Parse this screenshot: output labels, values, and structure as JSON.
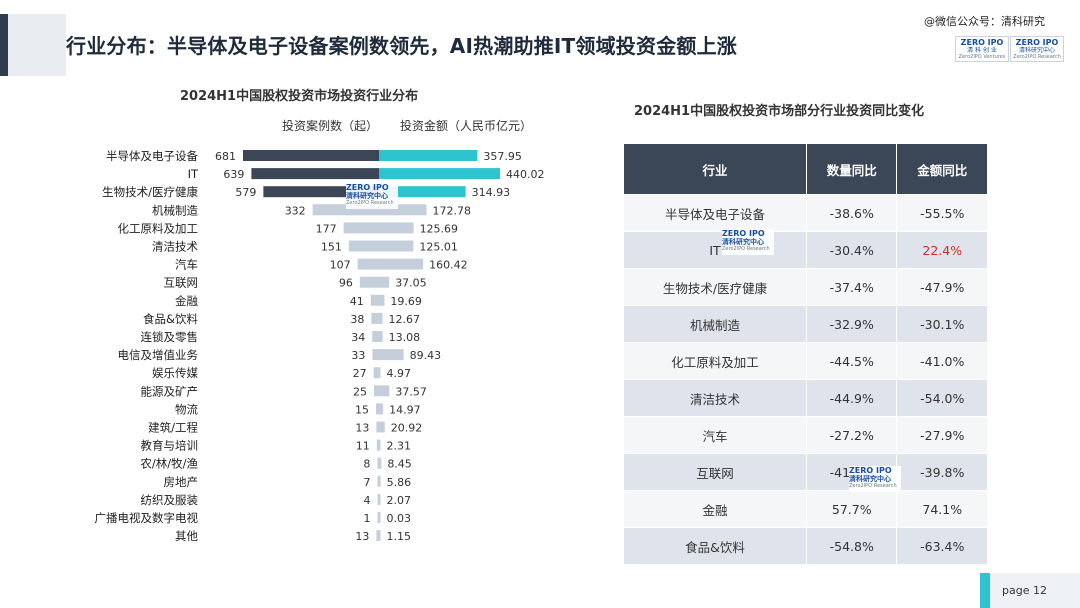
{
  "header": {
    "title": "行业分布：半导体及电子设备案例数领先，AI热潮助推IT领域投资金额上涨",
    "watermark": "@微信公众号：清科研究"
  },
  "logos": {
    "brand_top": "ZERO IPO",
    "brand_cn": "清 科 创 业",
    "brand_en": "Zero2IPO Ventures",
    "research_top": "ZERO IPO",
    "research_cn": "清科研究中心",
    "research_en": "Zero2IPO Research"
  },
  "left_chart": {
    "title": "2024H1中国股权投资市场投资行业分布",
    "count_header": "投资案例数（起）",
    "amount_header": "投资金额（人民币亿元）"
  },
  "chart_data": [
    {
      "type": "bar",
      "title": "2024H1中国股权投资市场投资行业分布",
      "categories": [
        "半导体及电子设备",
        "IT",
        "生物技术/医疗健康",
        "机械制造",
        "化工原料及加工",
        "清洁技术",
        "汽车",
        "互联网",
        "金融",
        "食品&饮料",
        "连锁及零售",
        "电信及增值业务",
        "娱乐传媒",
        "能源及矿产",
        "物流",
        "建筑/工程",
        "教育与培训",
        "农/林/牧/渔",
        "房地产",
        "纺织及服装",
        "广播电视及数字电视",
        "其他"
      ],
      "series": [
        {
          "name": "投资案例数（起）",
          "values": [
            681,
            639,
            579,
            332,
            177,
            151,
            107,
            96,
            41,
            38,
            34,
            33,
            27,
            25,
            15,
            13,
            11,
            8,
            7,
            4,
            1,
            13
          ]
        },
        {
          "name": "投资金额（人民币亿元）",
          "values": [
            357.95,
            440.02,
            314.93,
            172.78,
            125.69,
            125.01,
            160.42,
            37.05,
            19.69,
            12.67,
            13.08,
            89.43,
            4.97,
            37.57,
            14.97,
            20.92,
            2.31,
            8.45,
            5.86,
            2.07,
            0.03,
            1.15
          ]
        }
      ],
      "value_labels": {
        "counts": [
          "681",
          "639",
          "579",
          "332",
          "177",
          "151",
          "107",
          "96",
          "41",
          "38",
          "34",
          "33",
          "27",
          "25",
          "15",
          "13",
          "11",
          "8",
          "7",
          "4",
          "1",
          "13"
        ],
        "amounts": [
          "357.95",
          "440.02",
          "314.93",
          "172.78",
          "125.69",
          "125.01",
          "160.42",
          "37.05",
          "19.69",
          "12.67",
          "13.08",
          "89.43",
          "4.97",
          "37.57",
          "14.97",
          "20.92",
          "2.31",
          "8.45",
          "5.86",
          "2.07",
          "0.03",
          "1.15"
        ]
      },
      "colors": {
        "top3_count": "#3b4756",
        "top3_amount": "#2ec4cf",
        "other_count": "#c5cedb",
        "other_amount": "#c5cedb"
      }
    },
    {
      "type": "table",
      "title": "2024H1中国股权投资市场部分行业投资同比变化",
      "columns": [
        "行业",
        "数量同比",
        "金额同比"
      ],
      "rows": [
        [
          "半导体及电子设备",
          "-38.6%",
          "-55.5%"
        ],
        [
          "IT",
          "-30.4%",
          "22.4%"
        ],
        [
          "生物技术/医疗健康",
          "-37.4%",
          "-47.9%"
        ],
        [
          "机械制造",
          "-32.9%",
          "-30.1%"
        ],
        [
          "化工原料及加工",
          "-44.5%",
          "-41.0%"
        ],
        [
          "清洁技术",
          "-44.9%",
          "-54.0%"
        ],
        [
          "汽车",
          "-27.2%",
          "-27.9%"
        ],
        [
          "互联网",
          "-41.1%",
          "-39.8%"
        ],
        [
          "金融",
          "57.7%",
          "74.1%"
        ],
        [
          "食品&饮料",
          "-54.8%",
          "-63.4%"
        ]
      ],
      "highlight_color": "#d12a2a"
    }
  ],
  "right_table": {
    "title": "2024H1中国股权投资市场部分行业投资同比变化",
    "col1": "行业",
    "col2": "数量同比",
    "col3": "金额同比"
  },
  "footer": {
    "page_label": "page  12"
  }
}
